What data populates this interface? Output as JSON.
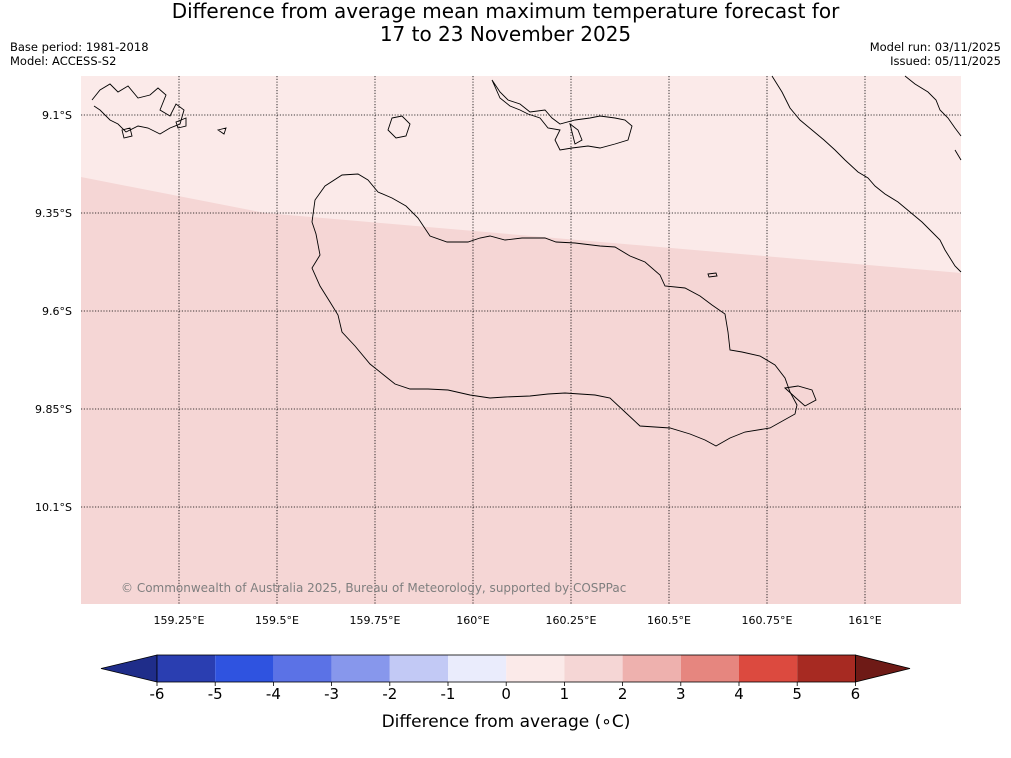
{
  "title": {
    "line1": "Difference from average mean maximum temperature forecast for",
    "line2": "17 to 23 November 2025"
  },
  "meta": {
    "base_period": "Base period: 1981-2018",
    "model": "Model: ACCESS-S2",
    "model_run": "Model run: 03/11/2025",
    "issued": "Issued: 05/11/2025"
  },
  "map": {
    "lat_ticks": [
      "9.1°S",
      "9.35°S",
      "9.6°S",
      "9.85°S",
      "10.1°S"
    ],
    "lon_ticks": [
      "159.25°E",
      "159.5°E",
      "159.75°E",
      "160°E",
      "160.25°E",
      "160.5°E",
      "160.75°E",
      "161°E"
    ],
    "lat_values": [
      -9.1,
      -9.35,
      -9.6,
      -9.85,
      -10.1
    ],
    "lon_values": [
      159.25,
      159.5,
      159.75,
      160.0,
      160.25,
      160.5,
      160.75,
      161.0
    ],
    "copyright": "© Commonwealth of Australia 2025, Bureau of Meteorology, supported by COSPPac",
    "regions": [
      {
        "category": "1 to 2",
        "color": "#fbeae9",
        "area": "north"
      },
      {
        "category": "2 to 3",
        "color": "#f5d6d5",
        "area": "south"
      }
    ]
  },
  "colorbar": {
    "label": "Difference from average (∘C)",
    "ticks": [
      "-6",
      "-5",
      "-4",
      "-3",
      "-2",
      "-1",
      "0",
      "1",
      "2",
      "3",
      "4",
      "5",
      "6"
    ],
    "colors": [
      "#1f2d8a",
      "#2a3eb1",
      "#2f53e0",
      "#5b72e6",
      "#8797ec",
      "#c2c9f5",
      "#eaecfc",
      "#fbeae9",
      "#f5d6d5",
      "#eeb1ae",
      "#e6867f",
      "#dc4a3f",
      "#a72a22",
      "#6e1a16"
    ]
  }
}
